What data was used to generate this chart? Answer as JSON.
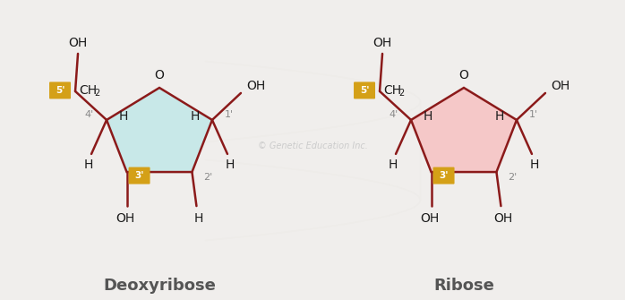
{
  "bg_color": "#f0eeec",
  "bond_color": "#8b1a1a",
  "label_color": "#1a1a1a",
  "prime_color": "#888888",
  "badge_color": "#d4a017",
  "badge_text_color": "#ffffff",
  "watermark": "© Genetic Education Inc.",
  "watermark_color": "#cccccc",
  "deoxyribose_title": "Deoxyribose",
  "ribose_title": "Ribose",
  "dna_fill": "#c8e8e8",
  "rna_fill": "#f5c8c8",
  "title_fontsize": 13,
  "label_fontsize": 11,
  "prime_fontsize": 8
}
